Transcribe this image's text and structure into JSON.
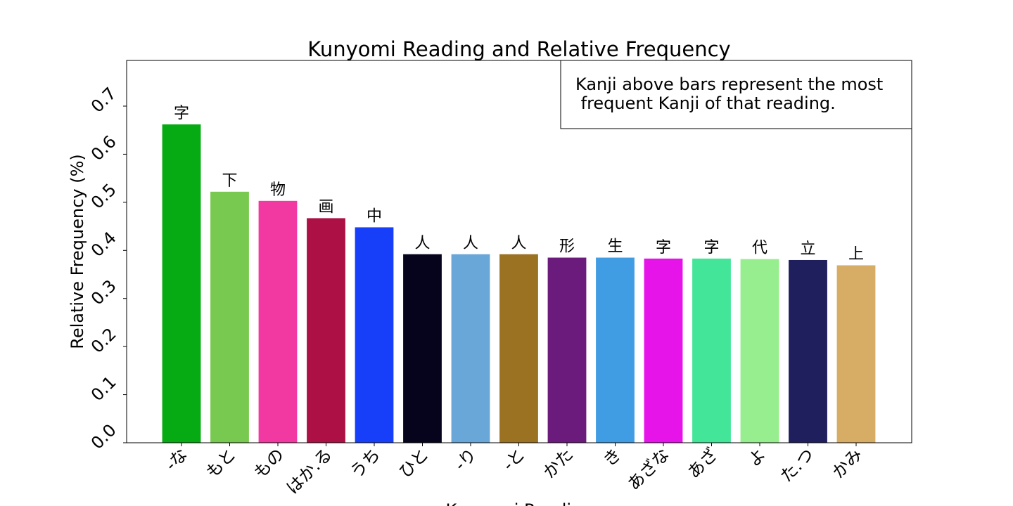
{
  "chart_data": {
    "type": "bar",
    "title": "Kunyomi Reading and Relative Frequency",
    "xlabel": "Kunyomi Reading",
    "ylabel": "Relative Frequency (%)",
    "ylim": [
      0.0,
      0.795
    ],
    "yticks": [
      "0.0",
      "0.1",
      "0.2",
      "0.3",
      "0.4",
      "0.5",
      "0.6",
      "0.7"
    ],
    "grid": false,
    "categories": [
      "-な",
      "もと",
      "もの",
      "はか.る",
      "うち",
      "ひと",
      "-り",
      "-と",
      "かた",
      "き",
      "あざな",
      "あざ",
      "よ",
      "た.つ",
      "かみ"
    ],
    "values": [
      0.662,
      0.522,
      0.503,
      0.467,
      0.448,
      0.392,
      0.392,
      0.392,
      0.385,
      0.385,
      0.383,
      0.383,
      0.382,
      0.38,
      0.369
    ],
    "bar_labels": [
      "字",
      "下",
      "物",
      "画",
      "中",
      "人",
      "人",
      "人",
      "形",
      "生",
      "字",
      "字",
      "代",
      "立",
      "上"
    ],
    "colors": [
      "#06ab13",
      "#78c94f",
      "#f239a1",
      "#ac1045",
      "#173ffa",
      "#05041c",
      "#68a7d8",
      "#9b7222",
      "#6a1b7c",
      "#409de4",
      "#e614e9",
      "#43e699",
      "#97ee8e",
      "#1f1f5d",
      "#d7ac64"
    ],
    "annotation_lines": [
      "Kanji above bars represent the most",
      " frequent Kanji of that reading."
    ]
  }
}
